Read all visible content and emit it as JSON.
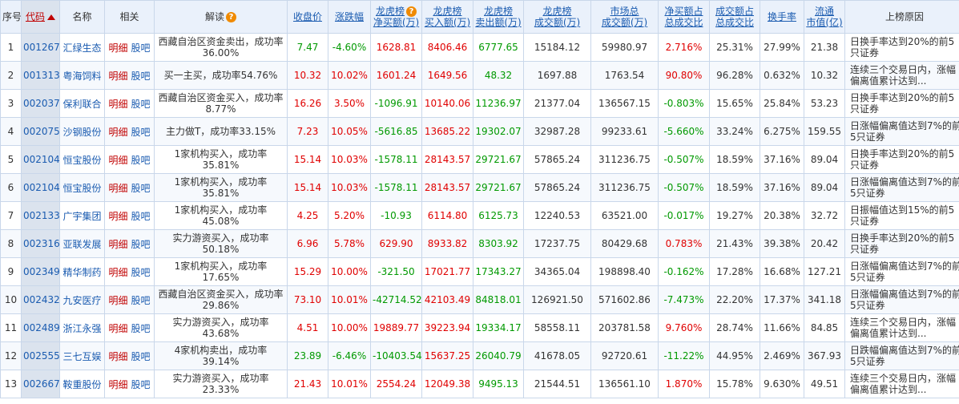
{
  "headers": {
    "seq": "序号",
    "code": "代码",
    "name": "名称",
    "related": "相关",
    "interpret": "解读",
    "close": "收盘价",
    "change": "涨跌幅",
    "net_buy_1": "龙虎榜",
    "net_buy_2": "净买额(万)",
    "buy_1": "龙虎榜",
    "buy_2": "买入额(万)",
    "sell_1": "龙虎榜",
    "sell_2": "卖出额(万)",
    "deal_1": "龙虎榜",
    "deal_2": "成交额(万)",
    "mkt_deal_1": "市场总",
    "mkt_deal_2": "成交额(万)",
    "net_ratio_1": "净买额占",
    "net_ratio_2": "总成交比",
    "deal_ratio_1": "成交额占",
    "deal_ratio_2": "总成交比",
    "turnover": "换手率",
    "float_cap_1": "流通",
    "float_cap_2": "市值(亿)",
    "reason": "上榜原因"
  },
  "link_labels": {
    "detail": "明细",
    "forum": "股吧"
  },
  "rows": [
    {
      "seq": "1",
      "code": "001267",
      "name": "汇绿生态",
      "interpret": "西藏自治区资金卖出，成功率36.00%",
      "close": "7.47",
      "change": "-4.60%",
      "net_buy": "1628.81",
      "buy": "8406.46",
      "sell": "6777.65",
      "deal": "15184.12",
      "mkt_deal": "59980.97",
      "net_ratio": "2.716%",
      "deal_ratio": "25.31%",
      "turnover": "27.99%",
      "float_cap": "21.38",
      "reason": "日换手率达到20%的前5只证券"
    },
    {
      "seq": "2",
      "code": "001313",
      "name": "粤海饲料",
      "interpret": "买一主买，成功率54.76%",
      "close": "10.32",
      "change": "10.02%",
      "net_buy": "1601.24",
      "buy": "1649.56",
      "sell": "48.32",
      "deal": "1697.88",
      "mkt_deal": "1763.54",
      "net_ratio": "90.80%",
      "deal_ratio": "96.28%",
      "turnover": "0.632%",
      "float_cap": "10.32",
      "reason": "连续三个交易日内，涨幅偏离值累计达到..."
    },
    {
      "seq": "3",
      "code": "002037",
      "name": "保利联合",
      "interpret": "西藏自治区资金买入，成功率8.77%",
      "close": "16.26",
      "change": "3.50%",
      "net_buy": "-1096.91",
      "buy": "10140.06",
      "sell": "11236.97",
      "deal": "21377.04",
      "mkt_deal": "136567.15",
      "net_ratio": "-0.803%",
      "deal_ratio": "15.65%",
      "turnover": "25.84%",
      "float_cap": "53.23",
      "reason": "日换手率达到20%的前5只证券"
    },
    {
      "seq": "4",
      "code": "002075",
      "name": "沙钢股份",
      "interpret": "主力做T，成功率33.15%",
      "close": "7.23",
      "change": "10.05%",
      "net_buy": "-5616.85",
      "buy": "13685.22",
      "sell": "19302.07",
      "deal": "32987.28",
      "mkt_deal": "99233.61",
      "net_ratio": "-5.660%",
      "deal_ratio": "33.24%",
      "turnover": "6.275%",
      "float_cap": "159.55",
      "reason": "日涨幅偏离值达到7%的前5只证券"
    },
    {
      "seq": "5",
      "code": "002104",
      "name": "恒宝股份",
      "interpret": "1家机构买入，成功率35.81%",
      "close": "15.14",
      "change": "10.03%",
      "net_buy": "-1578.11",
      "buy": "28143.57",
      "sell": "29721.67",
      "deal": "57865.24",
      "mkt_deal": "311236.75",
      "net_ratio": "-0.507%",
      "deal_ratio": "18.59%",
      "turnover": "37.16%",
      "float_cap": "89.04",
      "reason": "日换手率达到20%的前5只证券"
    },
    {
      "seq": "6",
      "code": "002104",
      "name": "恒宝股份",
      "interpret": "1家机构买入，成功率35.81%",
      "close": "15.14",
      "change": "10.03%",
      "net_buy": "-1578.11",
      "buy": "28143.57",
      "sell": "29721.67",
      "deal": "57865.24",
      "mkt_deal": "311236.75",
      "net_ratio": "-0.507%",
      "deal_ratio": "18.59%",
      "turnover": "37.16%",
      "float_cap": "89.04",
      "reason": "日涨幅偏离值达到7%的前5只证券"
    },
    {
      "seq": "7",
      "code": "002133",
      "name": "广宇集团",
      "interpret": "1家机构买入，成功率45.08%",
      "close": "4.25",
      "change": "5.20%",
      "net_buy": "-10.93",
      "buy": "6114.80",
      "sell": "6125.73",
      "deal": "12240.53",
      "mkt_deal": "63521.00",
      "net_ratio": "-0.017%",
      "deal_ratio": "19.27%",
      "turnover": "20.38%",
      "float_cap": "32.72",
      "reason": "日振幅值达到15%的前5只证券"
    },
    {
      "seq": "8",
      "code": "002316",
      "name": "亚联发展",
      "interpret": "实力游资买入，成功率50.18%",
      "close": "6.96",
      "change": "5.78%",
      "net_buy": "629.90",
      "buy": "8933.82",
      "sell": "8303.92",
      "deal": "17237.75",
      "mkt_deal": "80429.68",
      "net_ratio": "0.783%",
      "deal_ratio": "21.43%",
      "turnover": "39.38%",
      "float_cap": "20.42",
      "reason": "日换手率达到20%的前5只证券"
    },
    {
      "seq": "9",
      "code": "002349",
      "name": "精华制药",
      "interpret": "1家机构买入，成功率17.65%",
      "close": "15.29",
      "change": "10.00%",
      "net_buy": "-321.50",
      "buy": "17021.77",
      "sell": "17343.27",
      "deal": "34365.04",
      "mkt_deal": "198898.40",
      "net_ratio": "-0.162%",
      "deal_ratio": "17.28%",
      "turnover": "16.68%",
      "float_cap": "127.21",
      "reason": "日涨幅偏离值达到7%的前5只证券"
    },
    {
      "seq": "10",
      "code": "002432",
      "name": "九安医疗",
      "interpret": "西藏自治区资金买入，成功率29.86%",
      "close": "73.10",
      "change": "10.01%",
      "net_buy": "-42714.52",
      "buy": "42103.49",
      "sell": "84818.01",
      "deal": "126921.50",
      "mkt_deal": "571602.86",
      "net_ratio": "-7.473%",
      "deal_ratio": "22.20%",
      "turnover": "17.37%",
      "float_cap": "341.18",
      "reason": "日涨幅偏离值达到7%的前5只证券"
    },
    {
      "seq": "11",
      "code": "002489",
      "name": "浙江永强",
      "interpret": "实力游资买入，成功率43.68%",
      "close": "4.51",
      "change": "10.00%",
      "net_buy": "19889.77",
      "buy": "39223.94",
      "sell": "19334.17",
      "deal": "58558.11",
      "mkt_deal": "203781.58",
      "net_ratio": "9.760%",
      "deal_ratio": "28.74%",
      "turnover": "11.66%",
      "float_cap": "84.85",
      "reason": "连续三个交易日内，涨幅偏离值累计达到..."
    },
    {
      "seq": "12",
      "code": "002555",
      "name": "三七互娱",
      "interpret": "4家机构卖出，成功率39.14%",
      "close": "23.89",
      "change": "-6.46%",
      "net_buy": "-10403.54",
      "buy": "15637.25",
      "sell": "26040.79",
      "deal": "41678.05",
      "mkt_deal": "92720.61",
      "net_ratio": "-11.22%",
      "deal_ratio": "44.95%",
      "turnover": "2.469%",
      "float_cap": "367.93",
      "reason": "日跌幅偏离值达到7%的前5只证券"
    },
    {
      "seq": "13",
      "code": "002667",
      "name": "鞍重股份",
      "interpret": "实力游资买入，成功率23.33%",
      "close": "21.43",
      "change": "10.01%",
      "net_buy": "2554.24",
      "buy": "12049.38",
      "sell": "9495.13",
      "deal": "21544.51",
      "mkt_deal": "136561.10",
      "net_ratio": "1.870%",
      "deal_ratio": "15.78%",
      "turnover": "9.630%",
      "float_cap": "49.51",
      "reason": "连续三个交易日内，涨幅偏离值累计达到..."
    }
  ]
}
